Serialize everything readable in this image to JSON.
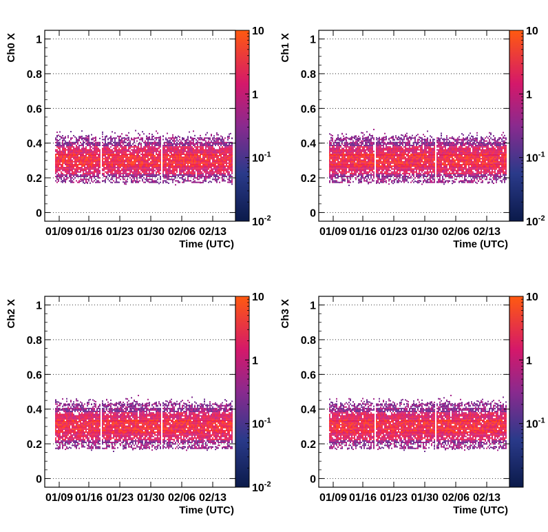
{
  "chart_data": [
    {
      "type": "heatmap",
      "ylabel": "Ch0 X",
      "xlabel": "Time (UTC)",
      "x_tick_labels": [
        "01/09",
        "01/16",
        "01/23",
        "01/30",
        "02/06",
        "02/13"
      ],
      "y_tick_labels": [
        "0",
        "0.2",
        "0.4",
        "0.6",
        "0.8",
        "1"
      ],
      "ylim": [
        -0.05,
        1.05
      ],
      "colorbar": {
        "scale": "log",
        "range": [
          0.01,
          10
        ],
        "tick_labels": [
          "10",
          "1",
          "10^-1",
          "10^-2"
        ]
      },
      "band": {
        "center": 0.3,
        "core_low": 0.2,
        "core_high": 0.4,
        "outlier_max": 0.57
      },
      "gaps_at": [
        "01/18",
        "01/31"
      ],
      "grid": "horizontal dotted"
    },
    {
      "type": "heatmap",
      "ylabel": "Ch1 X",
      "xlabel": "Time (UTC)",
      "x_tick_labels": [
        "01/09",
        "01/16",
        "01/23",
        "01/30",
        "02/06",
        "02/13"
      ],
      "y_tick_labels": [
        "0",
        "0.2",
        "0.4",
        "0.6",
        "0.8",
        "1"
      ],
      "ylim": [
        -0.05,
        1.05
      ],
      "colorbar": {
        "scale": "log",
        "range": [
          0.01,
          10
        ],
        "tick_labels": [
          "10",
          "1",
          "10^-1",
          "10^-2"
        ]
      },
      "band": {
        "center": 0.3,
        "core_low": 0.2,
        "core_high": 0.4,
        "outlier_max": 0.55
      },
      "gaps_at": [
        "01/18",
        "01/31"
      ],
      "grid": "horizontal dotted"
    },
    {
      "type": "heatmap",
      "ylabel": "Ch2 X",
      "xlabel": "Time (UTC)",
      "x_tick_labels": [
        "01/09",
        "01/16",
        "01/23",
        "01/30",
        "02/06",
        "02/13"
      ],
      "y_tick_labels": [
        "0",
        "0.2",
        "0.4",
        "0.6",
        "0.8",
        "1"
      ],
      "ylim": [
        -0.05,
        1.05
      ],
      "colorbar": {
        "scale": "log",
        "range": [
          0.01,
          10
        ],
        "tick_labels": [
          "10",
          "1",
          "10^-1",
          "10^-2"
        ]
      },
      "band": {
        "center": 0.3,
        "core_low": 0.2,
        "core_high": 0.4,
        "outlier_max": 0.57
      },
      "gaps_at": [
        "01/18",
        "01/31"
      ],
      "grid": "horizontal dotted"
    },
    {
      "type": "heatmap",
      "ylabel": "Ch3 X",
      "xlabel": "Time (UTC)",
      "x_tick_labels": [
        "01/09",
        "01/16",
        "01/23",
        "01/30",
        "02/06",
        "02/13"
      ],
      "y_tick_labels": [
        "0",
        "0.2",
        "0.4",
        "0.6",
        "0.8",
        "1"
      ],
      "ylim": [
        -0.05,
        1.05
      ],
      "colorbar": {
        "scale": "log",
        "range": [
          0.01,
          10
        ],
        "tick_labels": [
          "10",
          "1",
          "10^-1"
        ]
      },
      "band": {
        "center": 0.3,
        "core_low": 0.2,
        "core_high": 0.4,
        "outlier_max": 0.55
      },
      "gaps_at": [
        "01/18",
        "01/31"
      ],
      "grid": "horizontal dotted"
    }
  ]
}
